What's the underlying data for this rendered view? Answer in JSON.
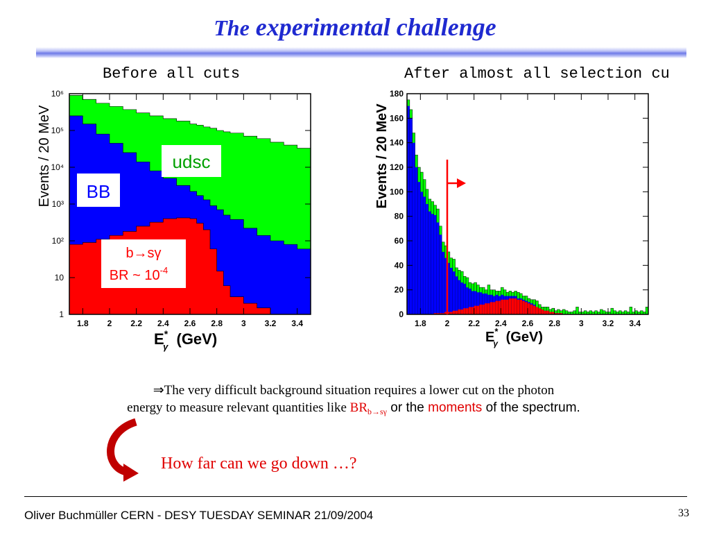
{
  "slide": {
    "title_lead": "The",
    "title_rest": "experimental challenge",
    "caption_left": "Before all cuts",
    "caption_right": "After almost all selection cu",
    "text_line1": "⇒The very difficult background situation requires a lower cut on the photon",
    "text_line2_a": "energy to measure relevant quantities like ",
    "text_line2_br": "BR",
    "text_line2_sub": "b→sγ",
    "text_line2_c": " or the ",
    "text_line2_moments": "moments",
    "text_line2_d": " of the spectrum.",
    "question": "How far can we go down …?",
    "footer": "Oliver Buchmüller CERN - DESY TUESDAY SEMINAR 21/09/2004",
    "page_number": "33",
    "arrow_icon": "curved-down-right-arrow-icon"
  },
  "chart_data": [
    {
      "type": "area",
      "stacked": true,
      "log_y": true,
      "ylabel": "Events / 20 MeV",
      "xlabel": "E*γ (GeV)",
      "xlim": [
        1.7,
        3.5
      ],
      "ylim": [
        1,
        1000000
      ],
      "x_ticks": [
        "1.8",
        "2",
        "2.2",
        "2.4",
        "2.6",
        "2.8",
        "3",
        "3.2",
        "3.4"
      ],
      "y_ticks": [
        "1",
        "10",
        "10²",
        "10³",
        "10⁴",
        "10⁵",
        "10⁶"
      ],
      "colors": {
        "bsg": "#ff0000",
        "bb": "#0000ff",
        "udsc": "#00ff00"
      },
      "labels": {
        "udsc": "udsc",
        "bb": "BB",
        "bsg_line1": "b→sγ",
        "bsg_line2": "BR ~ 10",
        "bsg_exp": "-4"
      },
      "x": [
        1.7,
        1.8,
        1.9,
        2.0,
        2.1,
        2.2,
        2.3,
        2.4,
        2.5,
        2.6,
        2.65,
        2.7,
        2.75,
        2.8,
        2.85,
        2.9,
        3.0,
        3.1,
        3.2,
        3.3,
        3.4,
        3.5
      ],
      "series": [
        {
          "name": "b→sγ",
          "values": [
            80,
            90,
            110,
            140,
            180,
            250,
            320,
            400,
            420,
            400,
            300,
            200,
            60,
            15,
            6,
            3,
            2,
            1.5,
            1,
            1,
            1,
            1
          ]
        },
        {
          "name": "BB",
          "values": [
            250000,
            150000,
            80000,
            45000,
            25000,
            14000,
            8000,
            5000,
            3200,
            2200,
            1700,
            1300,
            900,
            700,
            500,
            380,
            220,
            140,
            100,
            80,
            60,
            50
          ]
        },
        {
          "name": "udsc",
          "values": [
            900000,
            700000,
            550000,
            450000,
            370000,
            300000,
            250000,
            210000,
            180000,
            150000,
            140000,
            125000,
            115000,
            100000,
            92000,
            85000,
            70000,
            60000,
            48000,
            40000,
            33000,
            28000
          ]
        }
      ]
    },
    {
      "type": "bar",
      "stacked": true,
      "ylabel": "Events / 20 MeV",
      "xlabel": "E*γ (GeV)",
      "xlim": [
        1.7,
        3.5
      ],
      "ylim": [
        0,
        180
      ],
      "x_ticks": [
        "1.8",
        "2",
        "2.2",
        "2.4",
        "2.6",
        "2.8",
        "3",
        "3.2",
        "3.4"
      ],
      "y_ticks": [
        "0",
        "20",
        "40",
        "60",
        "80",
        "100",
        "120",
        "140",
        "160",
        "180"
      ],
      "cut_x": 2.0,
      "colors": {
        "bsg": "#ff0000",
        "bb": "#0000ff",
        "udsc": "#00ff00",
        "cut": "#ff0000"
      },
      "bin_start": 1.7,
      "bin_width": 0.02,
      "series": [
        {
          "name": "b→sγ",
          "values": [
            0,
            0,
            0,
            0,
            0,
            0,
            0,
            0,
            0,
            0,
            1,
            1,
            1,
            1,
            2,
            2,
            2,
            3,
            3,
            4,
            4,
            5,
            5,
            6,
            6,
            7,
            7,
            8,
            8,
            9,
            9,
            10,
            10,
            11,
            11,
            12,
            12,
            12,
            13,
            13,
            13,
            12,
            12,
            11,
            10,
            9,
            8,
            7,
            6,
            5,
            4,
            3,
            3,
            2,
            2,
            1,
            1,
            1,
            0,
            0,
            0,
            0,
            0,
            0,
            0,
            0,
            0,
            0,
            0,
            0,
            0,
            0,
            0,
            0,
            0,
            0,
            0,
            0,
            0,
            0,
            0,
            0,
            0,
            0,
            0,
            0,
            0,
            0,
            0,
            0
          ]
        },
        {
          "name": "BB",
          "values": [
            170,
            160,
            140,
            120,
            108,
            100,
            96,
            90,
            84,
            82,
            80,
            74,
            64,
            50,
            44,
            40,
            36,
            32,
            28,
            24,
            22,
            20,
            17,
            15,
            13,
            12,
            11,
            10,
            9,
            8,
            7,
            6,
            5,
            5,
            4,
            4,
            3,
            3,
            2,
            2,
            2,
            1,
            1,
            1,
            1,
            1,
            1,
            1,
            0,
            0,
            0,
            0,
            0,
            0,
            0,
            0,
            0,
            0,
            0,
            0,
            0,
            0,
            0,
            0,
            0,
            0,
            0,
            0,
            0,
            0,
            0,
            0,
            0,
            0,
            0,
            0,
            0,
            0,
            0,
            0,
            0,
            0,
            0,
            0,
            0,
            0,
            0,
            0,
            0,
            0
          ]
        },
        {
          "name": "udsc",
          "values": [
            5,
            7,
            8,
            10,
            12,
            16,
            14,
            12,
            10,
            10,
            8,
            11,
            7,
            8,
            10,
            9,
            8,
            10,
            7,
            8,
            9,
            6,
            8,
            5,
            6,
            7,
            6,
            4,
            5,
            3,
            8,
            4,
            5,
            3,
            4,
            6,
            5,
            3,
            4,
            3,
            4,
            5,
            4,
            3,
            4,
            3,
            3,
            4,
            5,
            3,
            2,
            3,
            3,
            2,
            3,
            2,
            3,
            2,
            4,
            3,
            2,
            2,
            3,
            6,
            2,
            2,
            3,
            2,
            3,
            2,
            3,
            2,
            4,
            3,
            2,
            2,
            5,
            3,
            2,
            3,
            2,
            3,
            2,
            6,
            2,
            3,
            2,
            3,
            2,
            6
          ]
        }
      ]
    }
  ]
}
